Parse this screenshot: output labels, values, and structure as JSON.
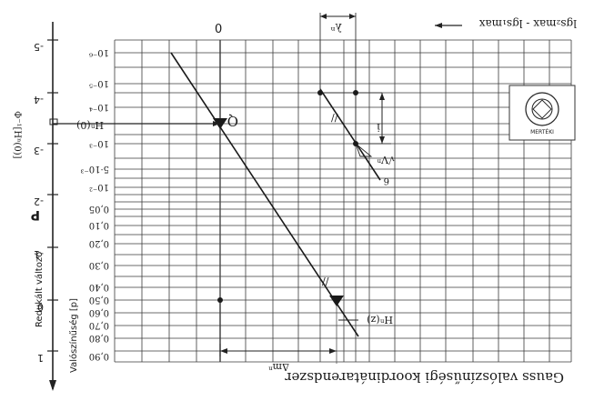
{
  "figure": {
    "bottom_title": "Gauss valószínűségi koordinátarendszer",
    "top_right_label": "lgs₂max - lgs₁max",
    "left_axis_title": "P",
    "left_axis_subtitle": "Redukált változó",
    "prob_axis_title": "Valószínűség [p]",
    "top_zero_label": "0",
    "reduced_ticks": [
      "-5",
      "-4",
      "-3",
      "-2",
      "-1",
      "0",
      "1"
    ],
    "prob_ticks": [
      "10⁻⁶",
      "10⁻⁵",
      "10⁻⁴",
      "10⁻³",
      "5·10⁻³",
      "10⁻²",
      "0,05",
      "0,10",
      "0,20",
      "0,30",
      "0,40",
      "0,50",
      "0,60",
      "0,70",
      "0,80",
      "0,90"
    ],
    "annotations": {
      "phi_label": "Φ⁻¹[Hⁿ(0)]",
      "h0_label": "Hⁿ(0)",
      "q_label": "Q",
      "lambda_label": "λⁿ",
      "i_label": "i",
      "v_label": "√Vⁿ",
      "six_label": "6",
      "hz_label": "Hⁿ(z)",
      "delta_label": "Δmⁿ",
      "slash_mark": "//"
    },
    "stamp": {
      "text": "MERTÉKI"
    }
  }
}
